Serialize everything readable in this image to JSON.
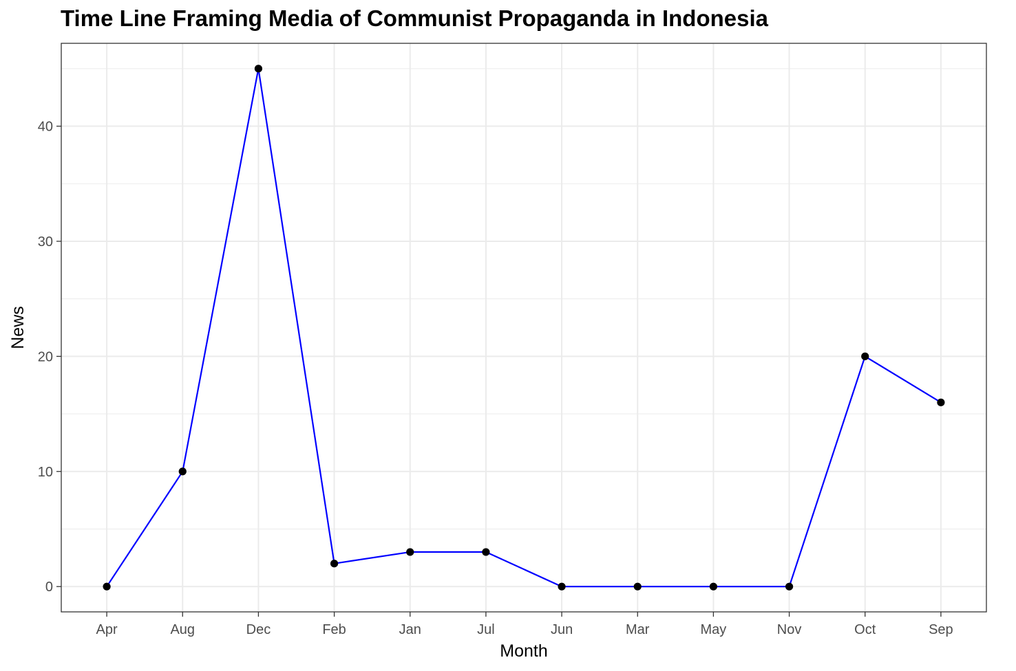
{
  "chart_data": {
    "type": "line",
    "title": "Time Line Framing Media of Communist Propaganda in Indonesia",
    "xlabel": "Month",
    "ylabel": "News",
    "categories": [
      "Apr",
      "Aug",
      "Dec",
      "Feb",
      "Jan",
      "Jul",
      "Jun",
      "Mar",
      "May",
      "Nov",
      "Oct",
      "Sep"
    ],
    "series": [
      {
        "values": [
          0,
          10,
          45,
          2,
          3,
          3,
          0,
          0,
          0,
          0,
          20,
          16
        ]
      }
    ],
    "yticks": [
      "0",
      "10",
      "20",
      "30",
      "40"
    ],
    "ylim": [
      -2.2,
      47.2
    ],
    "grid": true,
    "colors": {
      "line": "#0000ff",
      "point": "#000000",
      "grid": "#ebebeb",
      "panel_border": "#333333"
    }
  }
}
